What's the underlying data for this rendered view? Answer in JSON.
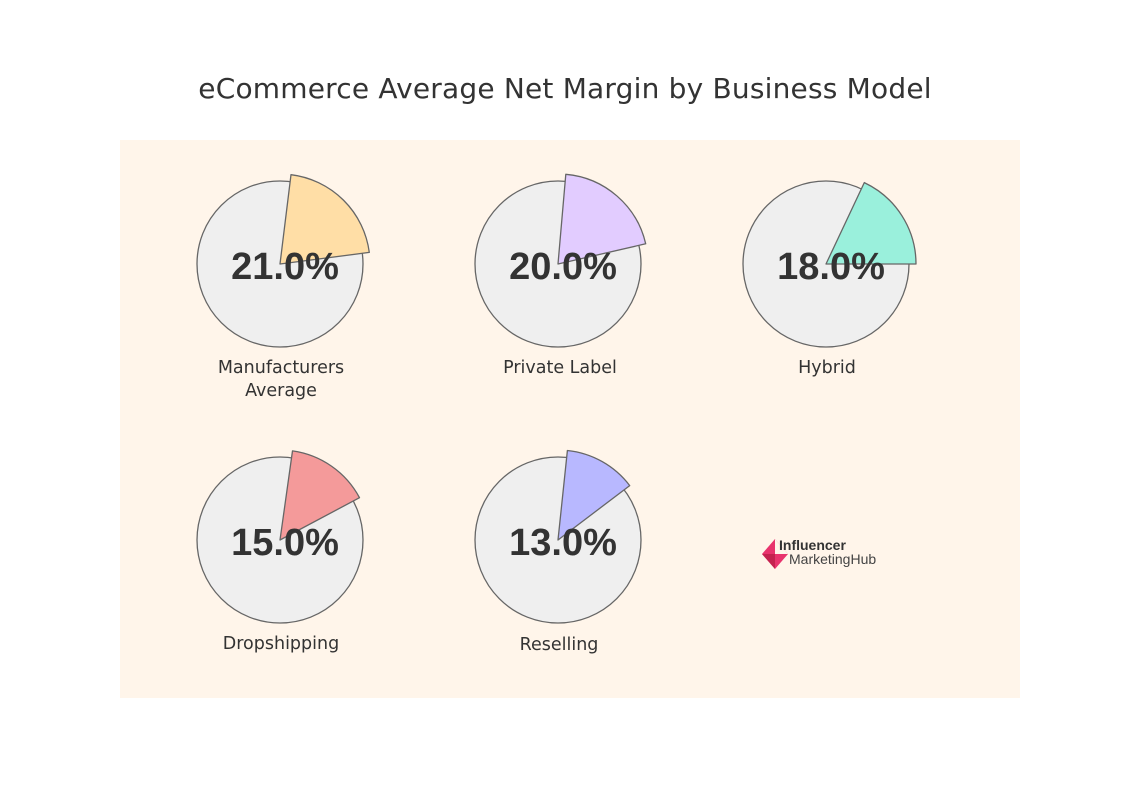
{
  "title": "eCommerce Average Net Margin by Business Model",
  "colors": {
    "panel_bg": "#FFF5EA",
    "circle_fill": "#EFEFEF",
    "stroke": "#666666",
    "text": "#333333"
  },
  "pies": [
    {
      "label": "Manufacturers Average",
      "label_line1": "Manufacturers",
      "label_line2": "Average",
      "value_text": "21.0%",
      "value": 21.0,
      "color": "#FFDEA6"
    },
    {
      "label": "Private Label",
      "label_line1": "Private Label",
      "label_line2": "",
      "value_text": "20.0%",
      "value": 20.0,
      "color": "#E2CCFF"
    },
    {
      "label": "Hybrid",
      "label_line1": "Hybrid",
      "label_line2": "",
      "value_text": "18.0%",
      "value": 18.0,
      "color": "#9AF0DC"
    },
    {
      "label": "Dropshipping",
      "label_line1": "Dropshipping",
      "label_line2": "",
      "value_text": "15.0%",
      "value": 15.0,
      "color": "#F49A9A"
    },
    {
      "label": "Reselling",
      "label_line1": "Reselling",
      "label_line2": "",
      "value_text": "13.0%",
      "value": 13.0,
      "color": "#B8B8FF"
    }
  ],
  "logo": {
    "line1": "Influencer",
    "line2": "MarketingHub",
    "color": "#E8336D"
  },
  "chart_data": {
    "type": "pie",
    "title": "eCommerce Average Net Margin by Business Model",
    "categories": [
      "Manufacturers Average",
      "Private Label",
      "Hybrid",
      "Dropshipping",
      "Reselling"
    ],
    "values": [
      21.0,
      20.0,
      18.0,
      15.0,
      13.0
    ],
    "unit": "%",
    "value_labels": [
      "21.0%",
      "20.0%",
      "18.0%",
      "15.0%",
      "13.0%"
    ],
    "series_colors": [
      "#FFDEA6",
      "#E2CCFF",
      "#9AF0DC",
      "#F49A9A",
      "#B8B8FF"
    ],
    "layout": "small multiples, 3x2 grid, each pie shows one highlighted exploded slice of the whole",
    "legend": "none"
  }
}
